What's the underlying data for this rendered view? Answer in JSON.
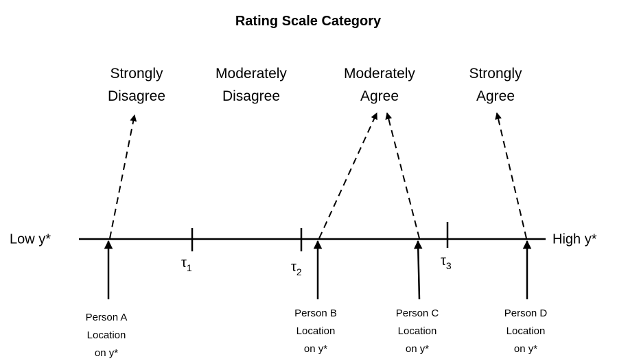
{
  "title": "Rating Scale Category",
  "categories": [
    {
      "lines": [
        "Strongly",
        "Disagree"
      ]
    },
    {
      "lines": [
        "Moderately",
        "Disagree"
      ]
    },
    {
      "lines": [
        "Moderately",
        "Agree"
      ]
    },
    {
      "lines": [
        "Strongly",
        "Agree"
      ]
    }
  ],
  "axis": {
    "low": "Low y*",
    "high": "High y*"
  },
  "thresholds": [
    {
      "symbol": "τ",
      "subscript": "1"
    },
    {
      "symbol": "τ",
      "subscript": "2"
    },
    {
      "symbol": "τ",
      "subscript": "3"
    }
  ],
  "persons": [
    {
      "lines": [
        "Person A",
        "Location",
        "on y*"
      ]
    },
    {
      "lines": [
        "Person B",
        "Location",
        "on y*"
      ]
    },
    {
      "lines": [
        "Person C",
        "Location",
        "on y*"
      ]
    },
    {
      "lines": [
        "Person D",
        "Location",
        "on y*"
      ]
    }
  ]
}
